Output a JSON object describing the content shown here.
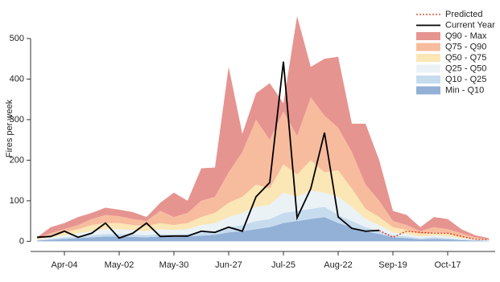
{
  "chart_data": {
    "type": "stacked-area",
    "y_label": "Fires per week",
    "categories": [
      null,
      null,
      "Apr-04",
      null,
      null,
      null,
      "May-02",
      null,
      null,
      null,
      "May-30",
      null,
      null,
      null,
      "Jun-27",
      null,
      null,
      null,
      "Jul-25",
      null,
      null,
      null,
      "Aug-22",
      null,
      null,
      null,
      "Sep-19",
      null,
      null,
      null,
      "Oct-17",
      null,
      null,
      null
    ],
    "ylim": [
      -25,
      585
    ],
    "yticks": [
      0,
      100,
      200,
      300,
      400,
      500
    ],
    "legend": "top-right",
    "series": [
      {
        "name": "Min - Q10",
        "color": "#93b0d6",
        "kind": "band",
        "values": [
          2,
          4,
          6,
          8,
          10,
          12,
          12,
          11,
          10,
          12,
          11,
          12,
          14,
          16,
          22,
          25,
          30,
          35,
          45,
          50,
          55,
          60,
          45,
          35,
          25,
          18,
          10,
          8,
          5,
          6,
          5,
          3,
          2,
          1
        ]
      },
      {
        "name": "Q10 - Q25",
        "color": "#c6dbee",
        "kind": "band",
        "values": [
          1,
          2,
          4,
          4,
          5,
          6,
          6,
          6,
          5,
          6,
          6,
          6,
          8,
          9,
          13,
          15,
          20,
          20,
          25,
          25,
          25,
          25,
          20,
          15,
          10,
          7,
          5,
          4,
          3,
          4,
          3,
          2,
          1,
          1
        ]
      },
      {
        "name": "Q25 - Q50",
        "color": "#eaf2f6",
        "kind": "band",
        "values": [
          1,
          4,
          5,
          8,
          10,
          12,
          12,
          11,
          10,
          12,
          11,
          12,
          18,
          20,
          25,
          30,
          35,
          35,
          50,
          35,
          45,
          35,
          45,
          35,
          20,
          15,
          7,
          6,
          4,
          5,
          4,
          3,
          2,
          1
        ]
      },
      {
        "name": "Q50 - Q75",
        "color": "#fbe6b5",
        "kind": "band",
        "values": [
          2,
          5,
          7,
          10,
          15,
          15,
          15,
          12,
          13,
          15,
          12,
          15,
          20,
          25,
          35,
          40,
          55,
          40,
          70,
          55,
          75,
          50,
          65,
          45,
          25,
          20,
          13,
          10,
          6,
          7,
          8,
          4,
          2,
          1
        ]
      },
      {
        "name": "Q75 - Q90",
        "color": "#f7bc9d",
        "kind": "band",
        "values": [
          2,
          5,
          8,
          10,
          15,
          20,
          17,
          15,
          12,
          30,
          20,
          25,
          40,
          40,
          75,
          110,
          160,
          120,
          130,
          95,
          155,
          140,
          105,
          90,
          60,
          40,
          15,
          12,
          7,
          13,
          10,
          8,
          3,
          1
        ]
      },
      {
        "name": "Q90 - Max",
        "color": "#e69490",
        "kind": "band",
        "values": [
          2,
          15,
          15,
          20,
          15,
          18,
          16,
          17,
          10,
          20,
          60,
          30,
          80,
          72,
          260,
          45,
          65,
          140,
          20,
          295,
          75,
          140,
          175,
          70,
          150,
          100,
          25,
          25,
          10,
          25,
          25,
          10,
          5,
          3
        ]
      },
      {
        "name": "Current Year",
        "color": "#000000",
        "kind": "line",
        "values": [
          10,
          12,
          25,
          10,
          20,
          45,
          8,
          20,
          45,
          12,
          13,
          13,
          25,
          22,
          35,
          25,
          110,
          145,
          443,
          58,
          130,
          268,
          60,
          32,
          25,
          27,
          null,
          null,
          null,
          null,
          null,
          null,
          null,
          null
        ]
      },
      {
        "name": "Predicted",
        "color": "#e0301e",
        "kind": "line",
        "dashed": true,
        "values": [
          null,
          null,
          null,
          null,
          null,
          null,
          null,
          null,
          null,
          null,
          null,
          null,
          null,
          null,
          null,
          null,
          null,
          null,
          null,
          null,
          null,
          null,
          null,
          null,
          null,
          27,
          10,
          25,
          22,
          20,
          20,
          12,
          5,
          4
        ]
      }
    ]
  }
}
